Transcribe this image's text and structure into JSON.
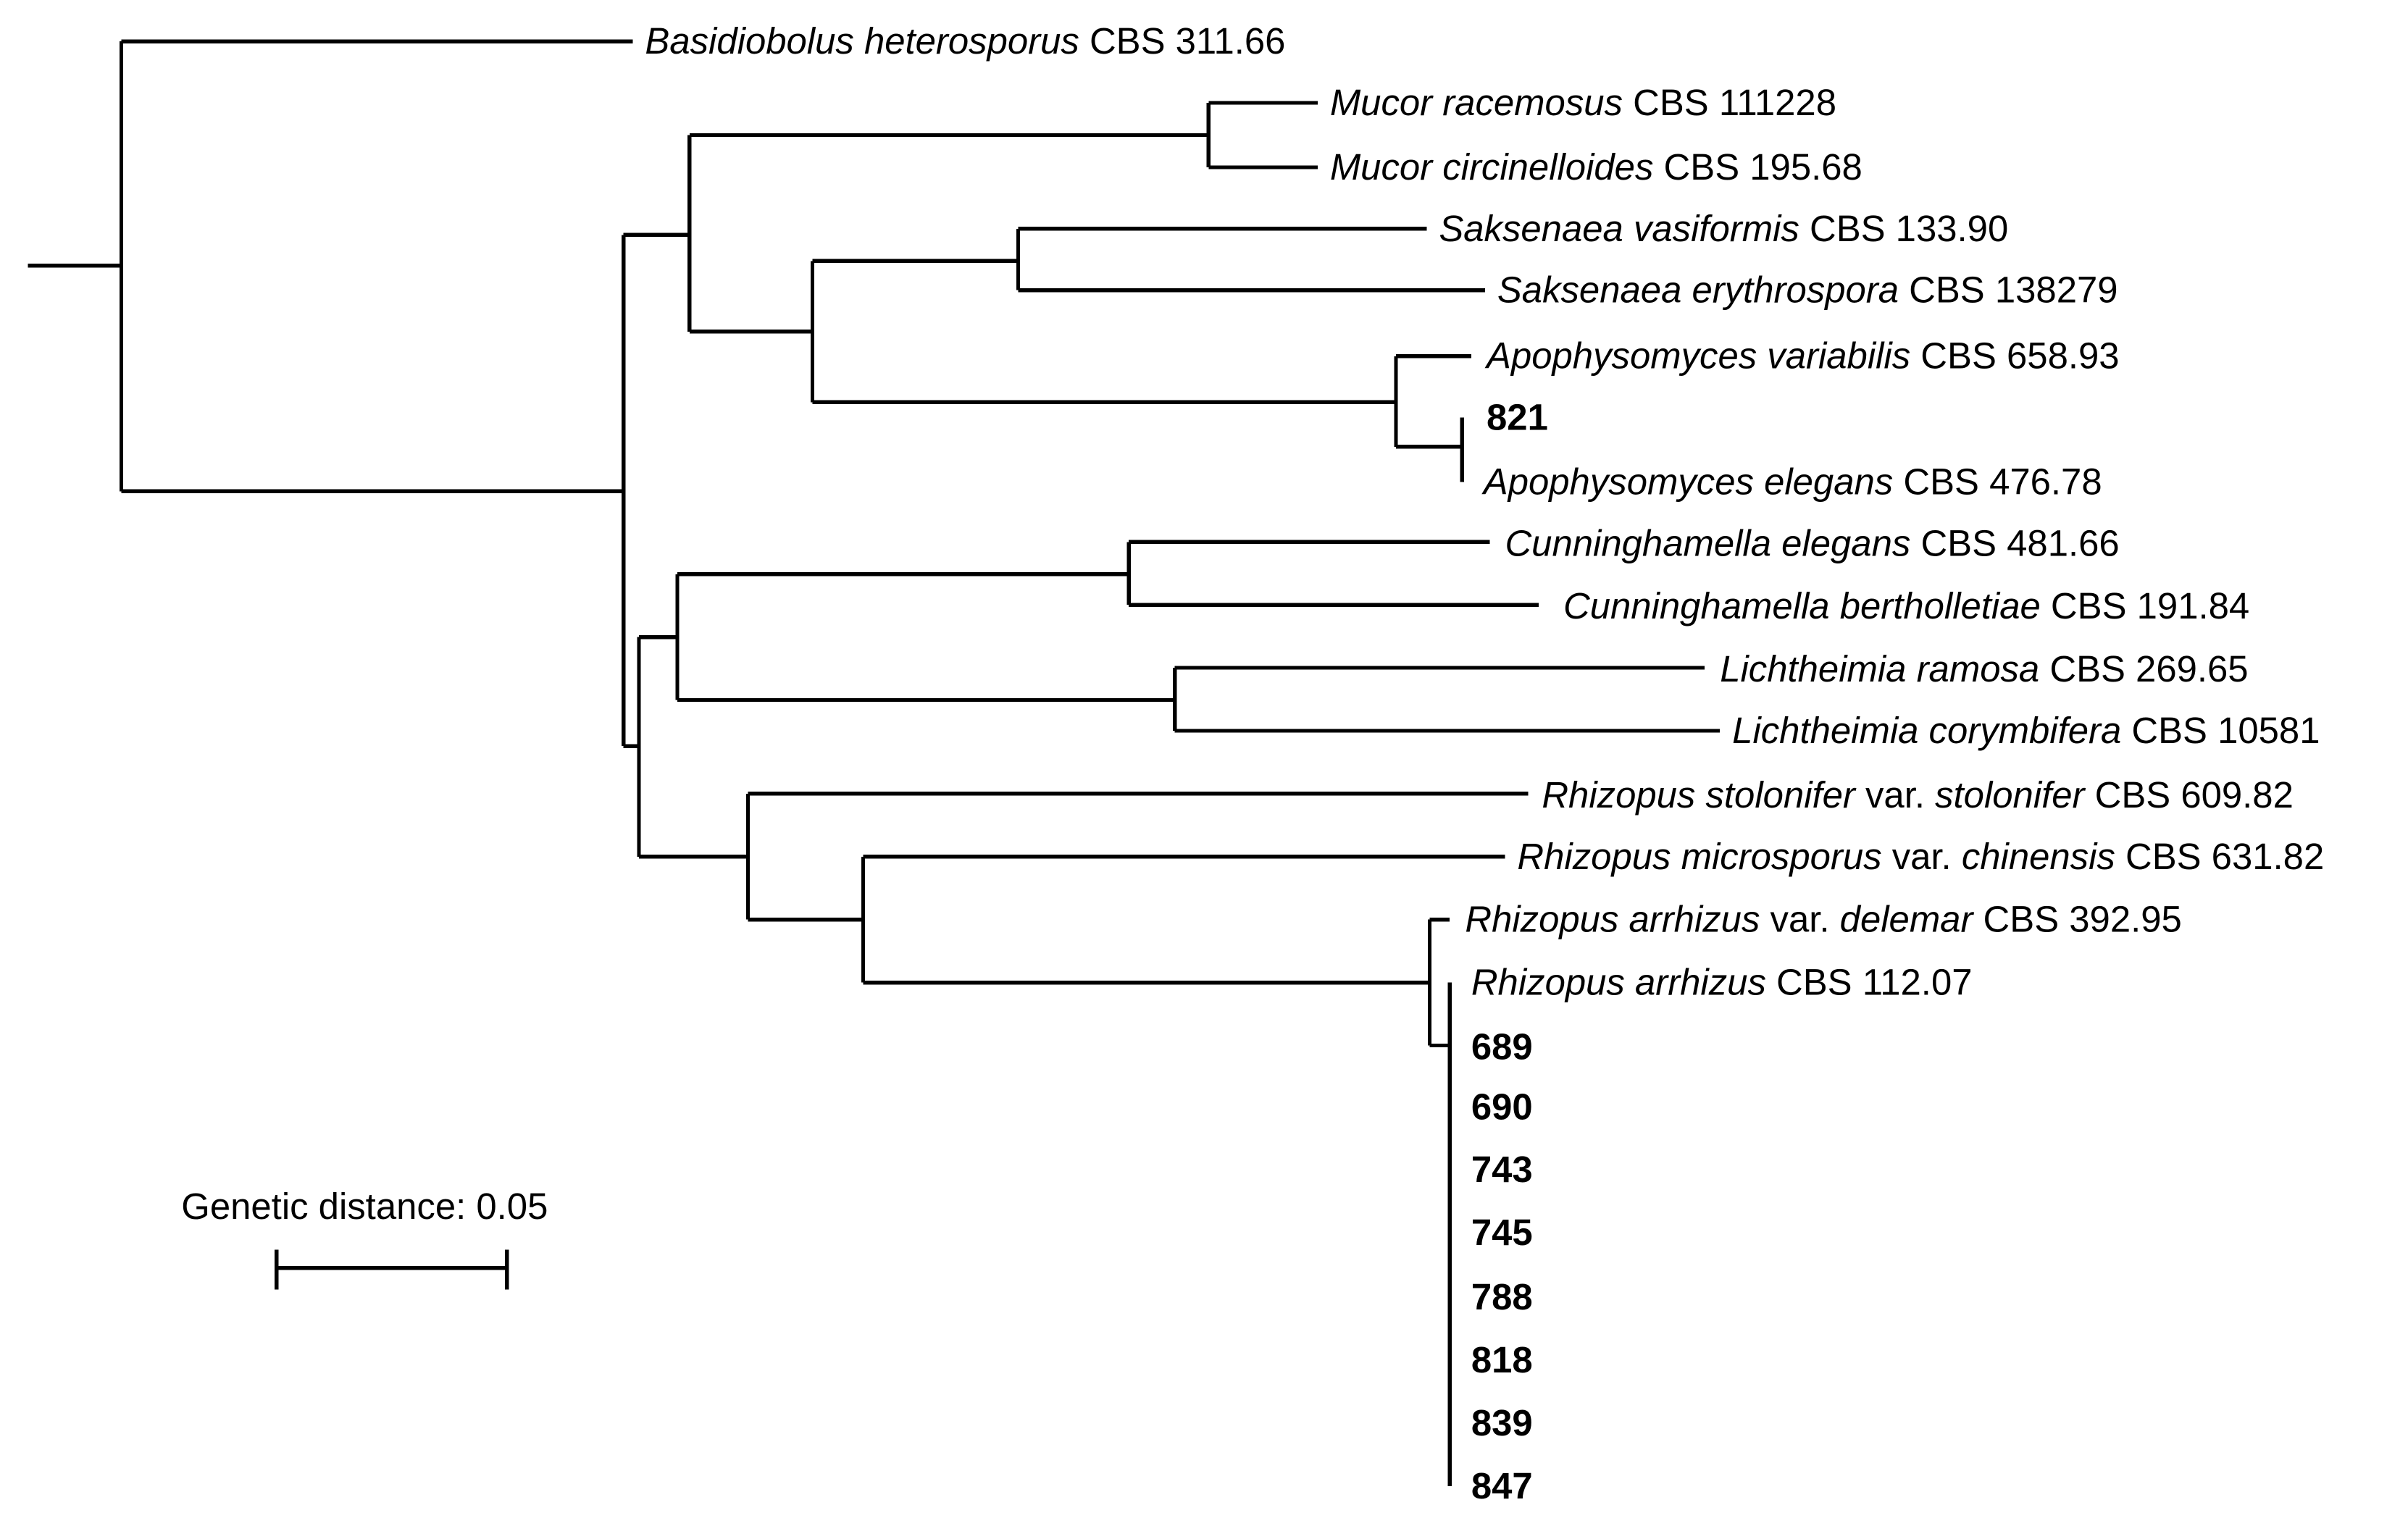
{
  "tree": {
    "leaves": [
      {
        "id": "basidiobolus",
        "parts": [
          {
            "t": "Basidiobolus heterosporus",
            "s": "it"
          },
          {
            "t": " CBS 311.66",
            "s": ""
          }
        ]
      },
      {
        "id": "mucor-racemosus",
        "parts": [
          {
            "t": "Mucor racemosus",
            "s": "it"
          },
          {
            "t": " CBS 111228",
            "s": ""
          }
        ]
      },
      {
        "id": "mucor-circinelloides",
        "parts": [
          {
            "t": "Mucor circinelloides",
            "s": "it"
          },
          {
            "t": " CBS 195.68",
            "s": ""
          }
        ]
      },
      {
        "id": "saksenaea-vasiformis",
        "parts": [
          {
            "t": "Saksenaea vasiformis",
            "s": "it"
          },
          {
            "t": " CBS 133.90",
            "s": ""
          }
        ]
      },
      {
        "id": "saksenaea-erythrospora",
        "parts": [
          {
            "t": "Saksenaea erythrospora",
            "s": "it"
          },
          {
            "t": " CBS 138279",
            "s": ""
          }
        ]
      },
      {
        "id": "apophysomyces-variabilis",
        "parts": [
          {
            "t": "Apophysomyces variabilis",
            "s": "it"
          },
          {
            "t": " CBS 658.93",
            "s": ""
          }
        ]
      },
      {
        "id": "isolate-821",
        "parts": [
          {
            "t": "821",
            "s": "bd"
          }
        ]
      },
      {
        "id": "apophysomyces-elegans",
        "parts": [
          {
            "t": "Apophysomyces elegans",
            "s": "it"
          },
          {
            "t": " CBS 476.78",
            "s": ""
          }
        ]
      },
      {
        "id": "cunninghamella-elegans",
        "parts": [
          {
            "t": "Cunninghamella elegans",
            "s": "it"
          },
          {
            "t": " CBS 481.66",
            "s": ""
          }
        ]
      },
      {
        "id": "cunninghamella-bertholletiae",
        "parts": [
          {
            "t": "Cunninghamella bertholletiae",
            "s": "it"
          },
          {
            "t": " CBS 191.84",
            "s": ""
          }
        ]
      },
      {
        "id": "lichtheimia-ramosa",
        "parts": [
          {
            "t": "Lichtheimia ramosa",
            "s": "it"
          },
          {
            "t": " CBS 269.65",
            "s": ""
          }
        ]
      },
      {
        "id": "lichtheimia-corymbifera",
        "parts": [
          {
            "t": "Lichtheimia corymbifera",
            "s": "it"
          },
          {
            "t": " CBS 10581",
            "s": ""
          }
        ]
      },
      {
        "id": "rhizopus-stolonifer",
        "parts": [
          {
            "t": "Rhizopus stolonifer",
            "s": "it"
          },
          {
            "t": " var. ",
            "s": ""
          },
          {
            "t": "stolonifer",
            "s": "it"
          },
          {
            "t": " CBS 609.82",
            "s": ""
          }
        ]
      },
      {
        "id": "rhizopus-microsporus",
        "parts": [
          {
            "t": "Rhizopus microsporus",
            "s": "it"
          },
          {
            "t": " var. ",
            "s": ""
          },
          {
            "t": "chinensis",
            "s": "it"
          },
          {
            "t": " CBS 631.82",
            "s": ""
          }
        ]
      },
      {
        "id": "rhizopus-arrhizus-delemar",
        "parts": [
          {
            "t": "Rhizopus arrhizus",
            "s": "it"
          },
          {
            "t": " var. ",
            "s": ""
          },
          {
            "t": "delemar",
            "s": "it"
          },
          {
            "t": " CBS 392.95",
            "s": ""
          }
        ]
      },
      {
        "id": "rhizopus-arrhizus",
        "parts": [
          {
            "t": "Rhizopus arrhizus",
            "s": "it"
          },
          {
            "t": " CBS 112.07",
            "s": ""
          }
        ]
      },
      {
        "id": "isolate-689",
        "parts": [
          {
            "t": "689",
            "s": "bd"
          }
        ]
      },
      {
        "id": "isolate-690",
        "parts": [
          {
            "t": "690",
            "s": "bd"
          }
        ]
      },
      {
        "id": "isolate-743",
        "parts": [
          {
            "t": "743",
            "s": "bd"
          }
        ]
      },
      {
        "id": "isolate-745",
        "parts": [
          {
            "t": "745",
            "s": "bd"
          }
        ]
      },
      {
        "id": "isolate-788",
        "parts": [
          {
            "t": "788",
            "s": "bd"
          }
        ]
      },
      {
        "id": "isolate-818",
        "parts": [
          {
            "t": "818",
            "s": "bd"
          }
        ]
      },
      {
        "id": "isolate-839",
        "parts": [
          {
            "t": "839",
            "s": "bd"
          }
        ]
      },
      {
        "id": "isolate-847",
        "parts": [
          {
            "t": "847",
            "s": "bd"
          }
        ]
      }
    ]
  },
  "scale_bar": {
    "label": "Genetic distance: 0.05",
    "value": 0.05
  }
}
